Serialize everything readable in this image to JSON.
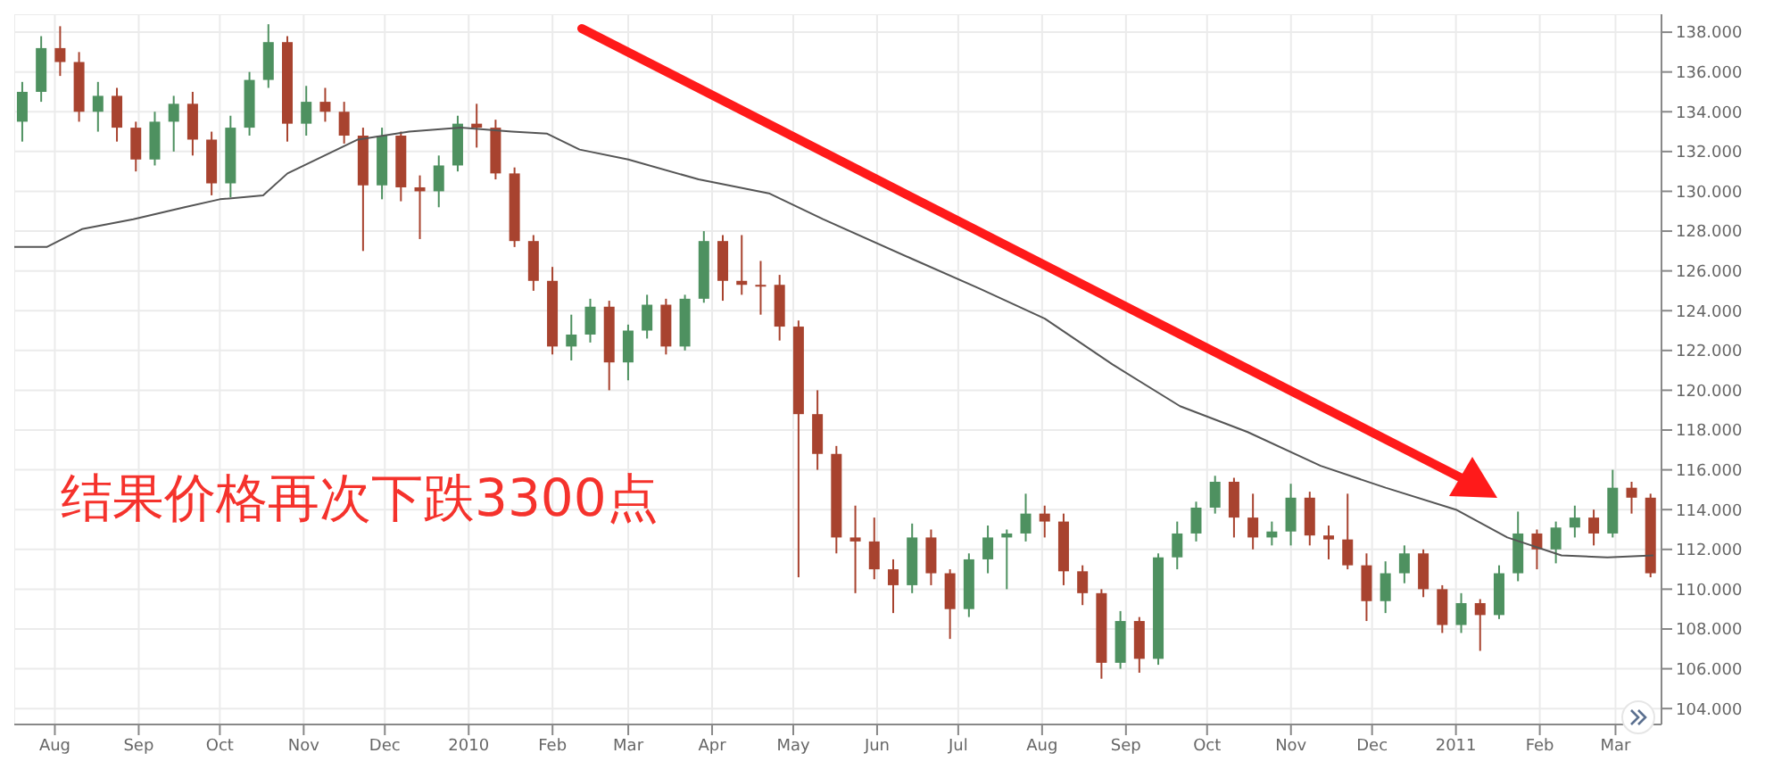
{
  "chart_data": {
    "type": "candlestick",
    "x": [
      "2009-07-20",
      "2009-07-27",
      "2009-08-03",
      "2009-08-10",
      "2009-08-17",
      "2009-08-24",
      "2009-08-31",
      "2009-09-07",
      "2009-09-14",
      "2009-09-21",
      "2009-09-28",
      "2009-10-05",
      "2009-10-12",
      "2009-10-19",
      "2009-10-26",
      "2009-11-02",
      "2009-11-09",
      "2009-11-16",
      "2009-11-23",
      "2009-11-30",
      "2009-12-07",
      "2009-12-14",
      "2009-12-21",
      "2009-12-28",
      "2010-01-04",
      "2010-01-11",
      "2010-01-18",
      "2010-01-25",
      "2010-02-01",
      "2010-02-08",
      "2010-02-15",
      "2010-02-22",
      "2010-03-01",
      "2010-03-08",
      "2010-03-15",
      "2010-03-22",
      "2010-03-29",
      "2010-04-05",
      "2010-04-12",
      "2010-04-19",
      "2010-04-26",
      "2010-05-03",
      "2010-05-10",
      "2010-05-17",
      "2010-05-24",
      "2010-05-31",
      "2010-06-07",
      "2010-06-14",
      "2010-06-21",
      "2010-06-28",
      "2010-07-05",
      "2010-07-12",
      "2010-07-19",
      "2010-07-26",
      "2010-08-02",
      "2010-08-09",
      "2010-08-16",
      "2010-08-23",
      "2010-08-30",
      "2010-09-06",
      "2010-09-13",
      "2010-09-20",
      "2010-09-27",
      "2010-10-04",
      "2010-10-11",
      "2010-10-18",
      "2010-10-25",
      "2010-11-01",
      "2010-11-08",
      "2010-11-15",
      "2010-11-22",
      "2010-11-29",
      "2010-12-06",
      "2010-12-13",
      "2010-12-20",
      "2010-12-27",
      "2011-01-03",
      "2011-01-10",
      "2011-01-17",
      "2011-01-24",
      "2011-01-31",
      "2011-02-07",
      "2011-02-14",
      "2011-02-21",
      "2011-02-28",
      "2011-03-07",
      "2011-03-14"
    ],
    "ohlc": [
      [
        133.5,
        135.5,
        132.5,
        135
      ],
      [
        135,
        137.8,
        134.5,
        137.2
      ],
      [
        137.2,
        138.3,
        135.8,
        136.5
      ],
      [
        136.5,
        137,
        133.5,
        134
      ],
      [
        134,
        135.5,
        133,
        134.8
      ],
      [
        134.8,
        135.2,
        132.5,
        133.2
      ],
      [
        133.2,
        133.5,
        131,
        131.6
      ],
      [
        131.6,
        134,
        131.3,
        133.5
      ],
      [
        133.5,
        134.8,
        132,
        134.4
      ],
      [
        134.4,
        135,
        131.8,
        132.6
      ],
      [
        132.6,
        133,
        129.8,
        130.4
      ],
      [
        130.4,
        133.8,
        129.7,
        133.2
      ],
      [
        133.2,
        136,
        132.8,
        135.6
      ],
      [
        135.6,
        138.4,
        135.2,
        137.5
      ],
      [
        137.5,
        137.8,
        132.5,
        133.4
      ],
      [
        133.4,
        135.3,
        132.8,
        134.5
      ],
      [
        134.5,
        135.2,
        133.5,
        134
      ],
      [
        134,
        134.5,
        132.4,
        132.8
      ],
      [
        132.8,
        133.2,
        127,
        130.3
      ],
      [
        130.3,
        133.2,
        129.6,
        132.8
      ],
      [
        132.8,
        133,
        129.5,
        130.2
      ],
      [
        130.2,
        130.8,
        127.6,
        130
      ],
      [
        130,
        131.8,
        129.2,
        131.3
      ],
      [
        131.3,
        133.8,
        131,
        133.4
      ],
      [
        133.4,
        134.4,
        132.2,
        133.2
      ],
      [
        133.2,
        133.6,
        130.6,
        130.9
      ],
      [
        130.9,
        131.2,
        127.2,
        127.5
      ],
      [
        127.5,
        127.8,
        125,
        125.5
      ],
      [
        125.5,
        126.2,
        121.8,
        122.2
      ],
      [
        122.2,
        123.8,
        121.5,
        122.8
      ],
      [
        122.8,
        124.6,
        122.4,
        124.2
      ],
      [
        124.2,
        124.5,
        120,
        121.4
      ],
      [
        121.4,
        123.3,
        120.5,
        123
      ],
      [
        123,
        124.8,
        122.6,
        124.3
      ],
      [
        124.3,
        124.6,
        121.8,
        122.2
      ],
      [
        122.2,
        124.8,
        122,
        124.6
      ],
      [
        124.6,
        128,
        124.4,
        127.5
      ],
      [
        127.5,
        127.8,
        124.5,
        125.5
      ],
      [
        125.5,
        127.8,
        124.8,
        125.3
      ],
      [
        125.3,
        126.5,
        123.8,
        125.3
      ],
      [
        125.3,
        125.8,
        122.5,
        123.2
      ],
      [
        123.2,
        123.5,
        110.6,
        118.8
      ],
      [
        118.8,
        120,
        116,
        116.8
      ],
      [
        116.8,
        117.2,
        111.8,
        112.6
      ],
      [
        112.6,
        114.2,
        109.8,
        112.4
      ],
      [
        112.4,
        113.6,
        110.5,
        111
      ],
      [
        111,
        111.5,
        108.8,
        110.2
      ],
      [
        110.2,
        113.3,
        109.8,
        112.6
      ],
      [
        112.6,
        113,
        110.2,
        110.8
      ],
      [
        110.8,
        111,
        107.5,
        109
      ],
      [
        109,
        111.8,
        108.6,
        111.5
      ],
      [
        111.5,
        113.2,
        110.8,
        112.6
      ],
      [
        112.6,
        113,
        110,
        112.8
      ],
      [
        112.8,
        114.8,
        112.4,
        113.8
      ],
      [
        113.8,
        114.2,
        112.6,
        113.4
      ],
      [
        113.4,
        113.8,
        110.2,
        110.9
      ],
      [
        110.9,
        111.2,
        109.2,
        109.8
      ],
      [
        109.8,
        110,
        105.5,
        106.3
      ],
      [
        106.3,
        108.9,
        106,
        108.4
      ],
      [
        108.4,
        108.6,
        105.8,
        106.5
      ],
      [
        106.5,
        111.8,
        106.2,
        111.6
      ],
      [
        111.6,
        113.4,
        111,
        112.8
      ],
      [
        112.8,
        114.4,
        112.4,
        114.1
      ],
      [
        114.1,
        115.7,
        113.8,
        115.4
      ],
      [
        115.4,
        115.6,
        112.6,
        113.6
      ],
      [
        113.6,
        114.8,
        112,
        112.6
      ],
      [
        112.6,
        113.4,
        112.2,
        112.9
      ],
      [
        112.9,
        115.3,
        112.2,
        114.6
      ],
      [
        114.6,
        114.9,
        112.2,
        112.7
      ],
      [
        112.7,
        113.2,
        111.5,
        112.5
      ],
      [
        112.5,
        114.8,
        111,
        111.2
      ],
      [
        111.2,
        111.8,
        108.4,
        109.4
      ],
      [
        109.4,
        111.4,
        108.8,
        110.8
      ],
      [
        110.8,
        112.2,
        110.3,
        111.8
      ],
      [
        111.8,
        112,
        109.6,
        110
      ],
      [
        110,
        110.2,
        107.8,
        108.2
      ],
      [
        108.2,
        109.8,
        107.8,
        109.3
      ],
      [
        109.3,
        109.5,
        106.9,
        108.7
      ],
      [
        108.7,
        111.2,
        108.5,
        110.8
      ],
      [
        110.8,
        113.9,
        110.4,
        112.8
      ],
      [
        112.8,
        113,
        111,
        112
      ],
      [
        112,
        113.4,
        111.3,
        113.1
      ],
      [
        113.1,
        114.2,
        112.6,
        113.6
      ],
      [
        113.6,
        114,
        112.2,
        112.8
      ],
      [
        112.8,
        116,
        112.6,
        115.1
      ],
      [
        115.1,
        115.4,
        113.8,
        114.6
      ],
      [
        114.6,
        114.8,
        110.6,
        110.8
      ]
    ],
    "colors": [
      "#4e9160",
      "#4e9160",
      "#a8432f",
      "#a8432f",
      "#4e9160",
      "#a8432f",
      "#a8432f",
      "#4e9160",
      "#4e9160",
      "#a8432f",
      "#a8432f",
      "#4e9160",
      "#4e9160",
      "#4e9160",
      "#a8432f",
      "#4e9160",
      "#a8432f",
      "#a8432f",
      "#a8432f",
      "#4e9160",
      "#a8432f",
      "#a8432f",
      "#4e9160",
      "#4e9160",
      "#a8432f",
      "#a8432f",
      "#a8432f",
      "#a8432f",
      "#a8432f",
      "#4e9160",
      "#4e9160",
      "#a8432f",
      "#4e9160",
      "#4e9160",
      "#a8432f",
      "#4e9160",
      "#4e9160",
      "#a8432f",
      "#a8432f",
      "#a8432f",
      "#a8432f",
      "#a8432f",
      "#a8432f",
      "#a8432f",
      "#a8432f",
      "#a8432f",
      "#a8432f",
      "#4e9160",
      "#a8432f",
      "#a8432f",
      "#4e9160",
      "#4e9160",
      "#4e9160",
      "#4e9160",
      "#a8432f",
      "#a8432f",
      "#a8432f",
      "#a8432f",
      "#4e9160",
      "#a8432f",
      "#4e9160",
      "#4e9160",
      "#4e9160",
      "#4e9160",
      "#a8432f",
      "#a8432f",
      "#4e9160",
      "#4e9160",
      "#a8432f",
      "#a8432f",
      "#a8432f",
      "#a8432f",
      "#4e9160",
      "#4e9160",
      "#a8432f",
      "#a8432f",
      "#4e9160",
      "#a8432f",
      "#4e9160",
      "#4e9160",
      "#a8432f",
      "#4e9160",
      "#4e9160",
      "#a8432f",
      "#4e9160",
      "#a8432f",
      "#a8432f"
    ],
    "series": [
      {
        "type": "line",
        "color": "#555555",
        "x": [
          "2009-07-17",
          "2009-07-29",
          "2009-08-11",
          "2009-08-30",
          "2009-09-18",
          "2009-10-01",
          "2009-10-17",
          "2009-10-26",
          "2009-11-21",
          "2009-12-10",
          "2009-12-29",
          "2010-01-17",
          "2010-01-30",
          "2010-02-11",
          "2010-03-01",
          "2010-03-27",
          "2010-04-22",
          "2010-05-12",
          "2010-06-14",
          "2010-07-09",
          "2010-08-02",
          "2010-08-27",
          "2010-09-21",
          "2010-10-16",
          "2010-11-12",
          "2010-12-06",
          "2011-01-01",
          "2011-01-20",
          "2011-02-09",
          "2011-02-26",
          "2011-03-15"
        ],
        "values": [
          127.2,
          127.2,
          128.1,
          128.6,
          129.2,
          129.6,
          129.8,
          130.9,
          132.6,
          133,
          133.2,
          133,
          132.9,
          132.1,
          131.6,
          130.6,
          129.9,
          128.6,
          126.6,
          125.1,
          123.6,
          121.3,
          119.2,
          117.9,
          116.2,
          115.1,
          114,
          112.6,
          111.7,
          111.6,
          111.7
        ]
      }
    ],
    "xlim": [
      "2009-07-17",
      "2011-03-18"
    ],
    "ylim": [
      103.2,
      138.9
    ],
    "xticks": [
      {
        "value": "2009-08-01",
        "label": "Aug"
      },
      {
        "value": "2009-09-01",
        "label": "Sep"
      },
      {
        "value": "2009-10-01",
        "label": "Oct"
      },
      {
        "value": "2009-11-01",
        "label": "Nov"
      },
      {
        "value": "2009-12-01",
        "label": "Dec"
      },
      {
        "value": "2010-01-01",
        "label": "2010"
      },
      {
        "value": "2010-02-01",
        "label": "Feb"
      },
      {
        "value": "2010-03-01",
        "label": "Mar"
      },
      {
        "value": "2010-04-01",
        "label": "Apr"
      },
      {
        "value": "2010-05-01",
        "label": "May"
      },
      {
        "value": "2010-06-01",
        "label": "Jun"
      },
      {
        "value": "2010-07-01",
        "label": "Jul"
      },
      {
        "value": "2010-08-01",
        "label": "Aug"
      },
      {
        "value": "2010-09-01",
        "label": "Sep"
      },
      {
        "value": "2010-10-01",
        "label": "Oct"
      },
      {
        "value": "2010-11-01",
        "label": "Nov"
      },
      {
        "value": "2010-12-01",
        "label": "Dec"
      },
      {
        "value": "2011-01-01",
        "label": "2011"
      },
      {
        "value": "2011-02-01",
        "label": "Feb"
      },
      {
        "value": "2011-03-01",
        "label": "Mar"
      }
    ],
    "yticks": [
      {
        "value": 104,
        "label": "104.000"
      },
      {
        "value": 106,
        "label": "106.000"
      },
      {
        "value": 108,
        "label": "108.000"
      },
      {
        "value": 110,
        "label": "110.000"
      },
      {
        "value": 112,
        "label": "112.000"
      },
      {
        "value": 114,
        "label": "114.000"
      },
      {
        "value": 116,
        "label": "116.000"
      },
      {
        "value": 118,
        "label": "118.000"
      },
      {
        "value": 120,
        "label": "120.000"
      },
      {
        "value": 122,
        "label": "122.000"
      },
      {
        "value": 124,
        "label": "124.000"
      },
      {
        "value": 126,
        "label": "126.000"
      },
      {
        "value": 128,
        "label": "128.000"
      },
      {
        "value": 130,
        "label": "130.000"
      },
      {
        "value": 132,
        "label": "132.000"
      },
      {
        "value": 134,
        "label": "134.000"
      },
      {
        "value": 136,
        "label": "136.000"
      },
      {
        "value": 138,
        "label": "138.000"
      }
    ],
    "grid": true,
    "annotations": [
      "结果价格再次下跌3300点"
    ]
  }
}
